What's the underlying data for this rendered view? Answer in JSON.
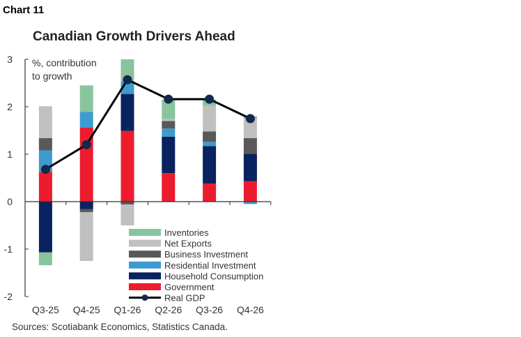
{
  "chart_label": "Chart 11",
  "chart_data": {
    "type": "bar",
    "stacked": true,
    "title": "Canadian Growth Drivers Ahead",
    "ylabel": "%, contribution to growth",
    "ylabel_lines": [
      "%, contribution",
      "to growth"
    ],
    "ylim": [
      -2,
      3
    ],
    "yticks": [
      -2,
      -1,
      0,
      1,
      2,
      3
    ],
    "categories": [
      "Q3-25",
      "Q4-25",
      "Q1-26",
      "Q2-26",
      "Q3-26",
      "Q4-26"
    ],
    "legend_position": "bottom-right (inside)",
    "grid": false,
    "series": [
      {
        "name": "Government",
        "color": "#ec1c2e",
        "values": [
          0.63,
          1.56,
          1.49,
          0.6,
          0.38,
          0.43
        ]
      },
      {
        "name": "Household Consumption",
        "color": "#0b2260",
        "values": [
          -1.07,
          -0.16,
          0.78,
          0.77,
          0.79,
          0.58
        ]
      },
      {
        "name": "Residential Investment",
        "color": "#3d9bd0",
        "values": [
          0.45,
          0.33,
          0.26,
          0.17,
          0.09,
          -0.05
        ]
      },
      {
        "name": "Business Investment",
        "color": "#595959",
        "values": [
          0.26,
          -0.06,
          -0.06,
          0.16,
          0.22,
          0.33
        ]
      },
      {
        "name": "Net Exports",
        "color": "#c0c0c0",
        "values": [
          0.67,
          -1.03,
          -0.44,
          0.04,
          0.54,
          0.41
        ]
      },
      {
        "name": "Inventories",
        "color": "#88c49e",
        "values": [
          -0.27,
          0.56,
          0.47,
          0.41,
          0.13,
          0.05
        ]
      }
    ],
    "line": {
      "name": "Real GDP",
      "color": "#000000",
      "marker_color": "#12294a",
      "values": [
        0.68,
        1.2,
        2.57,
        2.16,
        2.16,
        1.75
      ]
    },
    "legend_order": [
      "Inventories",
      "Net Exports",
      "Business Investment",
      "Residential Investment",
      "Household Consumption",
      "Government",
      "Real GDP"
    ]
  },
  "source": "Sources: Scotiabank Economics, Statistics Canada."
}
